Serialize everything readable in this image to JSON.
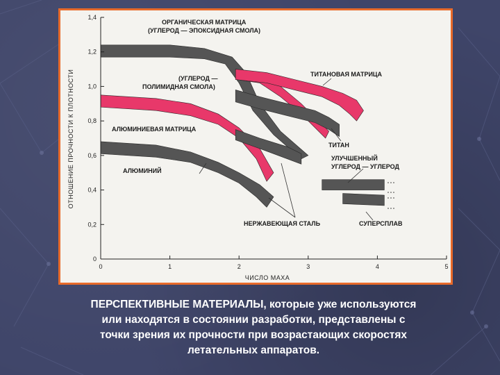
{
  "colors": {
    "background": "#3f4569",
    "frame_border": "#e86a2a",
    "plot_bg": "#f4f3ef",
    "composite_band": "#e8386a",
    "metal_band": "#555555"
  },
  "chart_data": {
    "type": "line",
    "xlabel": "ЧИСЛО МАХА",
    "ylabel": "ОТНОШЕНИЕ ПРОЧНОСТИ К ПЛОТНОСТИ",
    "xlim": [
      0,
      5
    ],
    "ylim": [
      0,
      1.4
    ],
    "x_ticks": [
      "0",
      "1",
      "2",
      "3",
      "4",
      "5"
    ],
    "y_ticks": [
      "0",
      "0,2",
      "0,4",
      "0,6",
      "0,8",
      "1,0",
      "1,2",
      "1,4"
    ],
    "grid": false,
    "series": [
      {
        "name": "ОРГАНИЧЕСКАЯ МАТРИЦА (УГЛЕРОД — ЭПОКСИДНАЯ СМОЛА)",
        "color": "#555555",
        "upper": [
          [
            0,
            1.24
          ],
          [
            1,
            1.24
          ],
          [
            1.5,
            1.22
          ],
          [
            1.9,
            1.17
          ],
          [
            2.1,
            1.08
          ],
          [
            2.3,
            0.9
          ],
          [
            2.6,
            0.74
          ],
          [
            3.0,
            0.6
          ]
        ],
        "lower": [
          [
            0,
            1.17
          ],
          [
            1,
            1.17
          ],
          [
            1.5,
            1.16
          ],
          [
            1.8,
            1.13
          ],
          [
            2.0,
            1.02
          ],
          [
            2.2,
            0.86
          ],
          [
            2.5,
            0.72
          ],
          [
            2.9,
            0.58
          ]
        ]
      },
      {
        "name": "(УГЛЕРОД — ПОЛИМИДНАЯ СМОЛА)",
        "color": "#e8386a",
        "upper": [
          [
            1.95,
            1.1
          ],
          [
            2.3,
            1.08
          ],
          [
            2.6,
            1.0
          ],
          [
            2.9,
            0.9
          ],
          [
            3.3,
            0.74
          ]
        ],
        "lower": [
          [
            1.95,
            1.04
          ],
          [
            2.3,
            1.02
          ],
          [
            2.6,
            0.94
          ],
          [
            2.9,
            0.84
          ],
          [
            3.25,
            0.7
          ]
        ]
      },
      {
        "name": "ТИТАНОВАЯ МАТРИЦА",
        "color": "#e8386a",
        "upper": [
          [
            1.95,
            1.1
          ],
          [
            2.4,
            1.08
          ],
          [
            2.8,
            1.04
          ],
          [
            3.2,
            1.0
          ],
          [
            3.5,
            0.96
          ],
          [
            3.7,
            0.92
          ],
          [
            3.8,
            0.86
          ]
        ],
        "lower": [
          [
            1.95,
            1.04
          ],
          [
            2.4,
            1.02
          ],
          [
            2.8,
            0.98
          ],
          [
            3.2,
            0.94
          ],
          [
            3.45,
            0.89
          ],
          [
            3.6,
            0.84
          ],
          [
            3.7,
            0.8
          ]
        ]
      },
      {
        "name": "АЛЮМИНИЕВАЯ МАТРИЦА",
        "color": "#e8386a",
        "upper": [
          [
            0,
            0.95
          ],
          [
            0.8,
            0.93
          ],
          [
            1.3,
            0.9
          ],
          [
            1.7,
            0.84
          ],
          [
            2.0,
            0.76
          ],
          [
            2.3,
            0.64
          ],
          [
            2.5,
            0.5
          ]
        ],
        "lower": [
          [
            0,
            0.88
          ],
          [
            0.8,
            0.86
          ],
          [
            1.3,
            0.83
          ],
          [
            1.7,
            0.78
          ],
          [
            2.0,
            0.7
          ],
          [
            2.25,
            0.58
          ],
          [
            2.4,
            0.45
          ]
        ]
      },
      {
        "name": "ТИТАН",
        "color": "#555555",
        "upper": [
          [
            1.95,
            0.98
          ],
          [
            2.3,
            0.94
          ],
          [
            2.7,
            0.9
          ],
          [
            3.1,
            0.86
          ],
          [
            3.3,
            0.82
          ],
          [
            3.45,
            0.78
          ]
        ],
        "lower": [
          [
            1.95,
            0.91
          ],
          [
            2.3,
            0.87
          ],
          [
            2.7,
            0.83
          ],
          [
            3.1,
            0.79
          ],
          [
            3.3,
            0.75
          ],
          [
            3.45,
            0.71
          ]
        ]
      },
      {
        "name": "НЕРЖАВЕЮЩАЯ СТАЛЬ",
        "color": "#555555",
        "upper": [
          [
            1.95,
            0.75
          ],
          [
            2.3,
            0.7
          ],
          [
            2.7,
            0.65
          ],
          [
            2.9,
            0.61
          ]
        ],
        "lower": [
          [
            1.95,
            0.69
          ],
          [
            2.3,
            0.64
          ],
          [
            2.7,
            0.58
          ],
          [
            2.9,
            0.55
          ]
        ]
      },
      {
        "name": "АЛЮМИНИЙ",
        "color": "#555555",
        "upper": [
          [
            0,
            0.68
          ],
          [
            0.8,
            0.66
          ],
          [
            1.3,
            0.62
          ],
          [
            1.7,
            0.56
          ],
          [
            2.0,
            0.5
          ],
          [
            2.3,
            0.43
          ],
          [
            2.5,
            0.36
          ]
        ],
        "lower": [
          [
            0,
            0.61
          ],
          [
            0.8,
            0.59
          ],
          [
            1.3,
            0.56
          ],
          [
            1.7,
            0.5
          ],
          [
            2.0,
            0.44
          ],
          [
            2.25,
            0.36
          ],
          [
            2.4,
            0.3
          ]
        ]
      },
      {
        "name": "УЛУЧШЕННЫЙ УГЛЕРОД — УГЛЕРОД",
        "color": "#555555",
        "upper": [
          [
            3.2,
            0.46
          ],
          [
            4.1,
            0.46
          ]
        ],
        "lower": [
          [
            3.2,
            0.4
          ],
          [
            4.1,
            0.4
          ]
        ]
      },
      {
        "name": "СУПЕРСПЛАВ",
        "color": "#555555",
        "upper": [
          [
            3.5,
            0.38
          ],
          [
            4.1,
            0.37
          ]
        ],
        "lower": [
          [
            3.5,
            0.32
          ],
          [
            4.1,
            0.31
          ]
        ]
      }
    ],
    "annotations": [
      {
        "lines": [
          "ОРГАНИЧЕСКАЯ МАТРИЦА",
          "(УГЛЕРОД — ЭПОКСИДНАЯ СМОЛА)"
        ]
      },
      {
        "lines": [
          "(УГЛЕРОД —",
          "ПОЛИМИДНАЯ СМОЛА)"
        ]
      },
      {
        "lines": [
          "ТИТАНОВАЯ МАТРИЦА"
        ]
      },
      {
        "lines": [
          "АЛЮМИНИЕВАЯ МАТРИЦА"
        ]
      },
      {
        "lines": [
          "ТИТАН"
        ]
      },
      {
        "lines": [
          "УЛУЧШЕННЫЙ",
          "УГЛЕРОД — УГЛЕРОД"
        ]
      },
      {
        "lines": [
          "АЛЮМИНИЙ"
        ]
      },
      {
        "lines": [
          "НЕРЖАВЕЮЩАЯ СТАЛЬ"
        ]
      },
      {
        "lines": [
          "СУПЕРСПЛАВ"
        ]
      }
    ]
  },
  "caption": {
    "line1": "ПЕРСПЕКТИВНЫЕ МАТЕРИАЛЫ, которые уже используются",
    "line2": "или находятся в состоянии разработки, представлены с",
    "line3": "точки зрения их прочности при возрастающих скоростях",
    "line4": "летательных аппаратов."
  }
}
